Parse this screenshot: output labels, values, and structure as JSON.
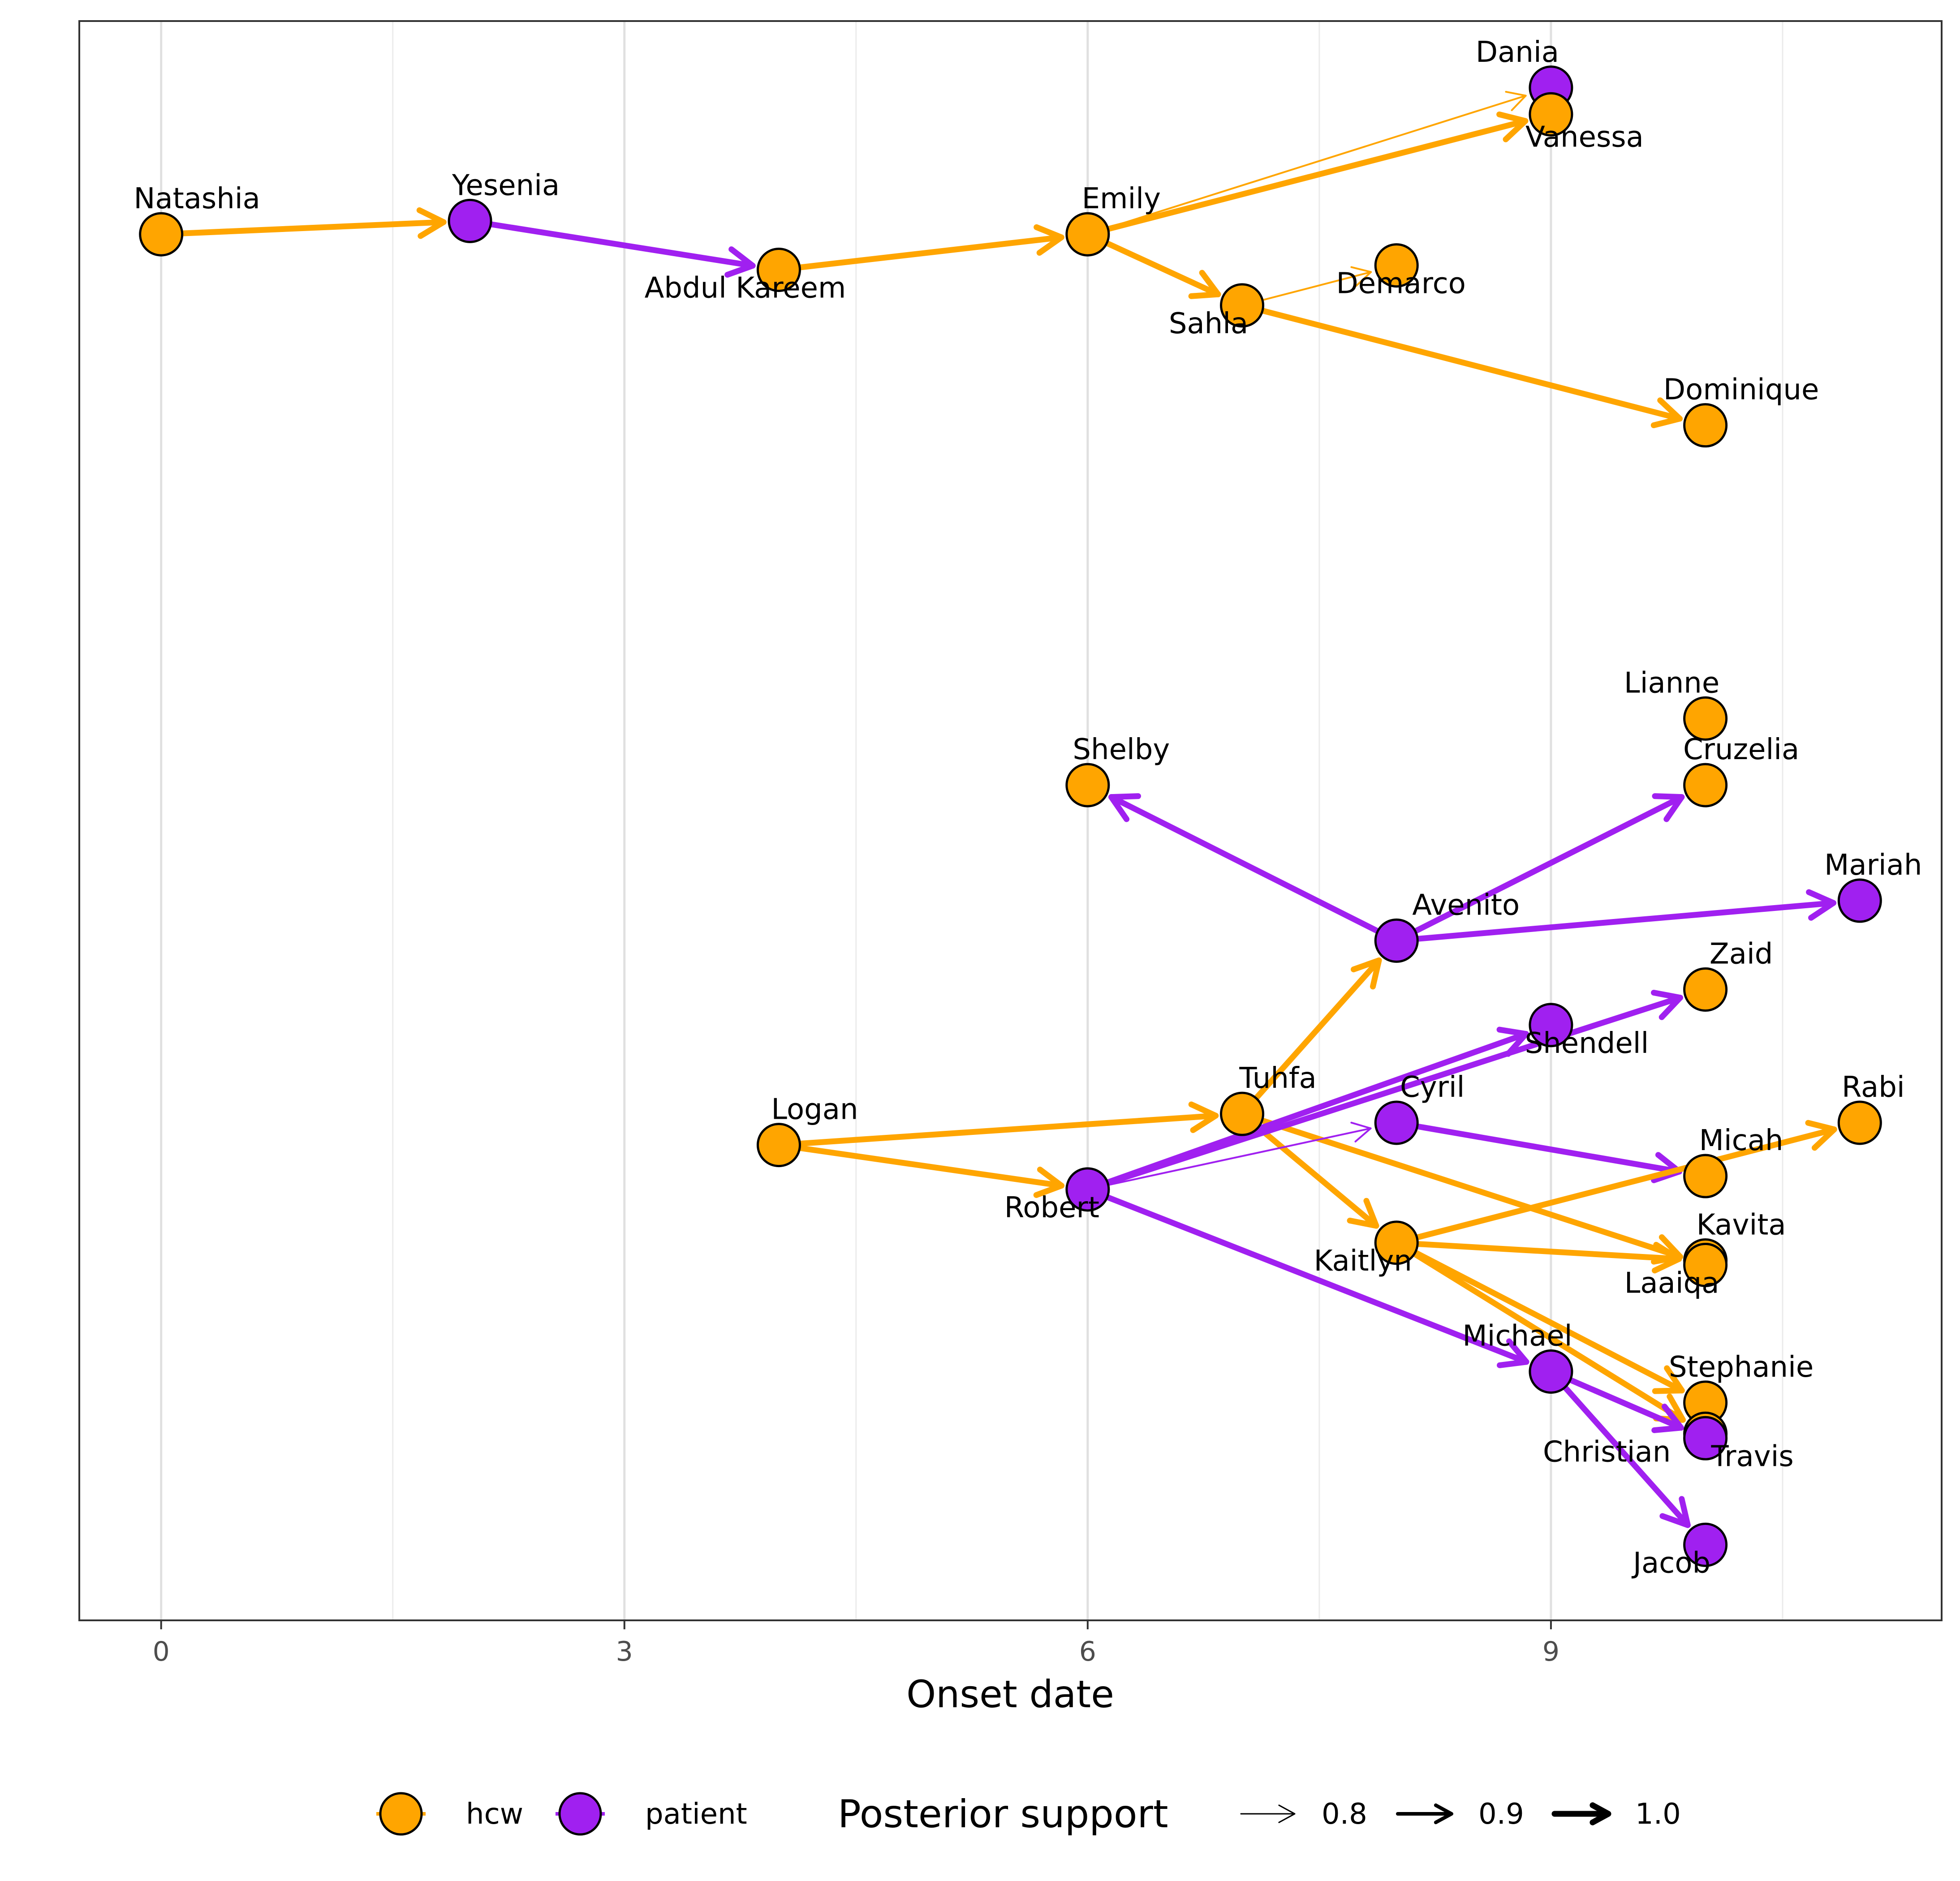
{
  "chart_data": {
    "type": "scatter",
    "title": "",
    "xlabel": "Onset date",
    "ylabel": "",
    "xlim": [
      -0.53,
      11.53
    ],
    "xticks": [
      0,
      3,
      6,
      9
    ],
    "x_minor_gridlines": [
      1.5,
      4.5,
      7.5,
      10.5
    ],
    "grid": true,
    "legend_position": "bottom",
    "groups": [
      {
        "name": "hcw",
        "color": "#FFA500"
      },
      {
        "name": "patient",
        "color": "#A020F0"
      }
    ],
    "posterior_support": {
      "title": "Posterior support",
      "values": [
        "0.8",
        "0.9",
        "1.0"
      ]
    },
    "nodes": [
      {
        "id": "Natashia",
        "x": 0,
        "y": 3.82,
        "group": "hcw"
      },
      {
        "id": "Yesenia",
        "x": 2,
        "y": 3.85,
        "group": "patient"
      },
      {
        "id": "Abdul Kareem",
        "x": 4,
        "y": 3.74,
        "group": "hcw"
      },
      {
        "id": "Emily",
        "x": 6,
        "y": 3.82,
        "group": "hcw"
      },
      {
        "id": "Sahla",
        "x": 7,
        "y": 3.66,
        "group": "hcw"
      },
      {
        "id": "Demarco",
        "x": 8,
        "y": 3.75,
        "group": "hcw"
      },
      {
        "id": "Dania",
        "x": 9,
        "y": 4.15,
        "group": "patient"
      },
      {
        "id": "Vanessa",
        "x": 9,
        "y": 4.09,
        "group": "hcw"
      },
      {
        "id": "Dominique",
        "x": 10,
        "y": 3.39,
        "group": "hcw"
      },
      {
        "id": "Lianne",
        "x": 10,
        "y": 2.73,
        "group": "hcw"
      },
      {
        "id": "Cruzelia",
        "x": 10,
        "y": 2.58,
        "group": "hcw"
      },
      {
        "id": "Shelby",
        "x": 6,
        "y": 2.58,
        "group": "hcw"
      },
      {
        "id": "Mariah",
        "x": 11,
        "y": 2.32,
        "group": "patient"
      },
      {
        "id": "Avenito",
        "x": 8,
        "y": 2.23,
        "group": "patient"
      },
      {
        "id": "Zaid",
        "x": 10,
        "y": 2.12,
        "group": "hcw"
      },
      {
        "id": "Shendell",
        "x": 9,
        "y": 2.04,
        "group": "patient"
      },
      {
        "id": "Tuhfa",
        "x": 7,
        "y": 1.84,
        "group": "hcw"
      },
      {
        "id": "Cyril",
        "x": 8,
        "y": 1.82,
        "group": "patient"
      },
      {
        "id": "Rabi",
        "x": 11,
        "y": 1.82,
        "group": "hcw"
      },
      {
        "id": "Logan",
        "x": 4,
        "y": 1.77,
        "group": "hcw"
      },
      {
        "id": "Micah",
        "x": 10,
        "y": 1.7,
        "group": "hcw"
      },
      {
        "id": "Robert",
        "x": 6,
        "y": 1.67,
        "group": "patient"
      },
      {
        "id": "Kaitlyn",
        "x": 8,
        "y": 1.55,
        "group": "hcw"
      },
      {
        "id": "Kavita",
        "x": 10,
        "y": 1.51,
        "group": "hcw"
      },
      {
        "id": "Laaiqa",
        "x": 10,
        "y": 1.5,
        "group": "hcw"
      },
      {
        "id": "Michael",
        "x": 9,
        "y": 1.26,
        "group": "patient"
      },
      {
        "id": "Stephanie",
        "x": 10,
        "y": 1.19,
        "group": "hcw"
      },
      {
        "id": "Christian",
        "x": 10,
        "y": 1.12,
        "group": "hcw"
      },
      {
        "id": "Travis",
        "x": 10,
        "y": 1.11,
        "group": "patient"
      },
      {
        "id": "Jacob",
        "x": 10,
        "y": 0.87,
        "group": "patient"
      }
    ],
    "edges": [
      {
        "from": "Natashia",
        "to": "Yesenia",
        "support": 1.0
      },
      {
        "from": "Yesenia",
        "to": "Abdul Kareem",
        "support": 1.0
      },
      {
        "from": "Abdul Kareem",
        "to": "Emily",
        "support": 1.0
      },
      {
        "from": "Emily",
        "to": "Vanessa",
        "support": 1.0
      },
      {
        "from": "Emily",
        "to": "Dania",
        "support": 0.8
      },
      {
        "from": "Emily",
        "to": "Sahla",
        "support": 1.0
      },
      {
        "from": "Sahla",
        "to": "Demarco",
        "support": 0.8
      },
      {
        "from": "Sahla",
        "to": "Dominique",
        "support": 1.0
      },
      {
        "from": "Avenito",
        "to": "Shelby",
        "support": 1.0
      },
      {
        "from": "Avenito",
        "to": "Cruzelia",
        "support": 1.0
      },
      {
        "from": "Avenito",
        "to": "Mariah",
        "support": 1.0
      },
      {
        "from": "Logan",
        "to": "Tuhfa",
        "support": 1.0
      },
      {
        "from": "Logan",
        "to": "Robert",
        "support": 1.0
      },
      {
        "from": "Tuhfa",
        "to": "Avenito",
        "support": 1.0
      },
      {
        "from": "Tuhfa",
        "to": "Kaitlyn",
        "support": 1.0
      },
      {
        "from": "Tuhfa",
        "to": "Laaiqa",
        "support": 1.0
      },
      {
        "from": "Robert",
        "to": "Zaid",
        "support": 1.0
      },
      {
        "from": "Robert",
        "to": "Shendell",
        "support": 1.0
      },
      {
        "from": "Robert",
        "to": "Cyril",
        "support": 0.8
      },
      {
        "from": "Robert",
        "to": "Michael",
        "support": 1.0
      },
      {
        "from": "Cyril",
        "to": "Micah",
        "support": 1.0
      },
      {
        "from": "Kaitlyn",
        "to": "Rabi",
        "support": 1.0
      },
      {
        "from": "Kaitlyn",
        "to": "Kavita",
        "support": 1.0
      },
      {
        "from": "Kaitlyn",
        "to": "Stephanie",
        "support": 1.0
      },
      {
        "from": "Kaitlyn",
        "to": "Christian",
        "support": 1.0
      },
      {
        "from": "Michael",
        "to": "Travis",
        "support": 1.0
      },
      {
        "from": "Michael",
        "to": "Jacob",
        "support": 1.0
      }
    ]
  }
}
